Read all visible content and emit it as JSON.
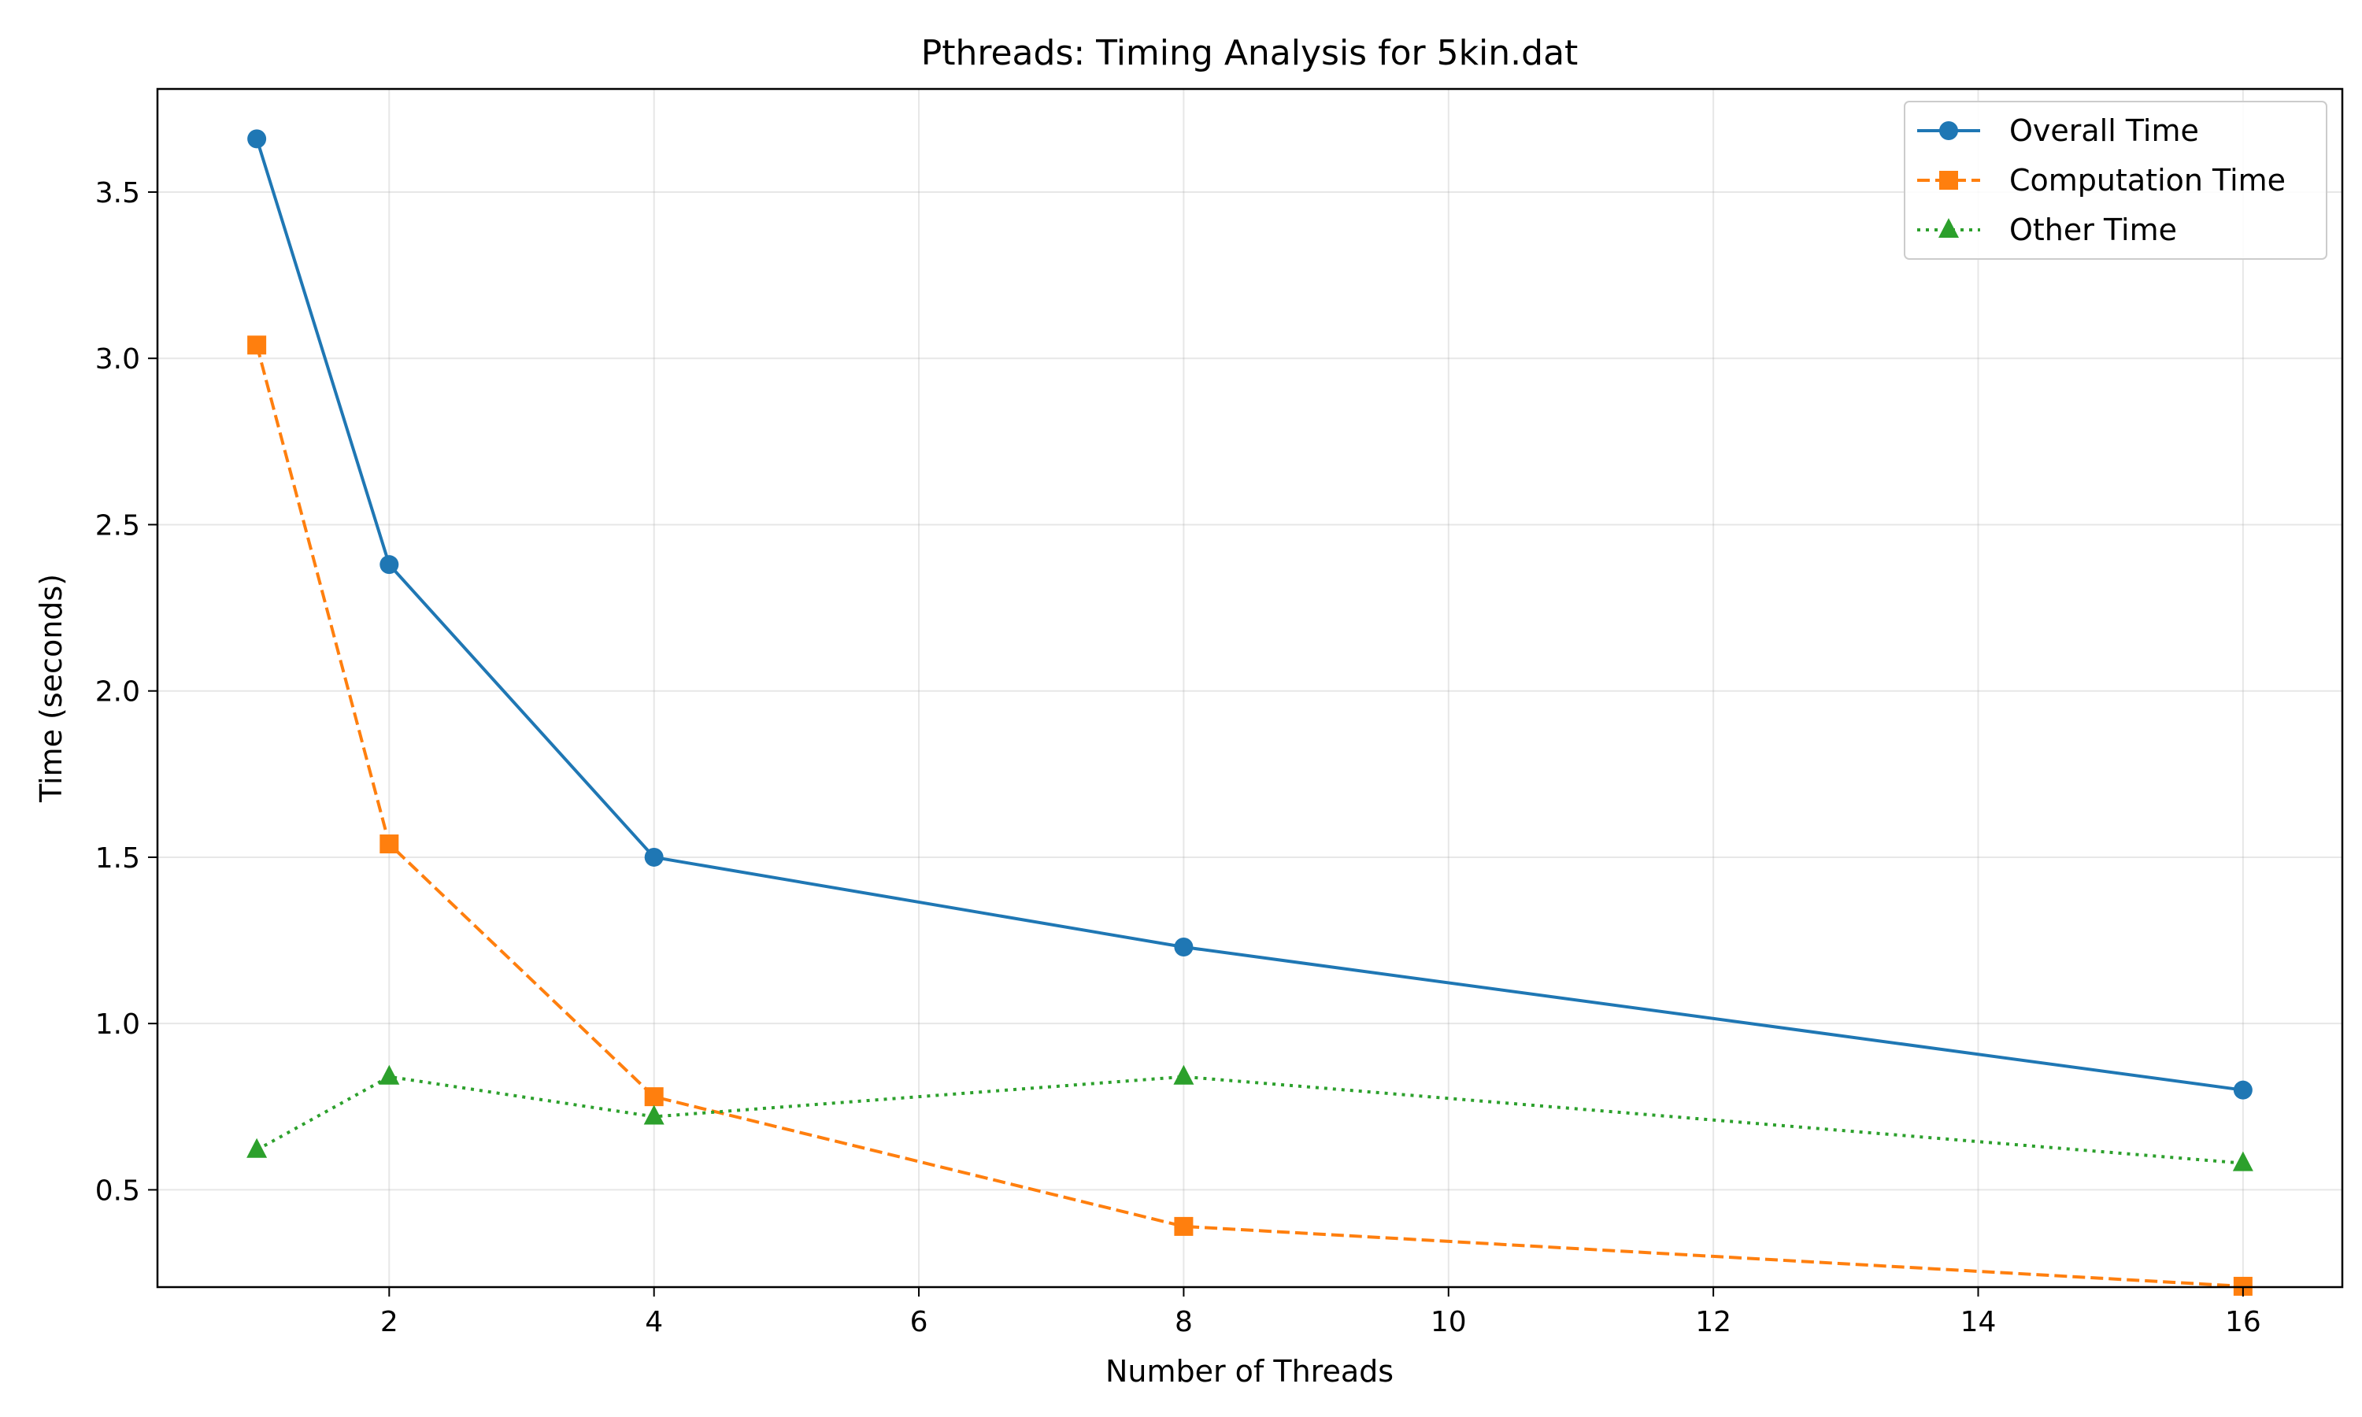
{
  "chart_data": {
    "type": "line",
    "title": "Pthreads: Timing Analysis for 5kin.dat",
    "xlabel": "Number of Threads",
    "ylabel": "Time (seconds)",
    "x": [
      1,
      2,
      4,
      8,
      16
    ],
    "xlim": [
      0.25,
      16.75
    ],
    "ylim": [
      0.2075,
      3.81
    ],
    "xticks": [
      2,
      4,
      6,
      8,
      10,
      12,
      14,
      16
    ],
    "xtick_labels": [
      "2",
      "4",
      "6",
      "8",
      "10",
      "12",
      "14",
      "16"
    ],
    "yticks": [
      0.5,
      1.0,
      1.5,
      2.0,
      2.5,
      3.0,
      3.5
    ],
    "ytick_labels": [
      "0.5",
      "1.0",
      "1.5",
      "2.0",
      "2.5",
      "3.0",
      "3.5"
    ],
    "grid": true,
    "legend_position": "top-right",
    "series": [
      {
        "name": "Overall Time",
        "values": [
          3.66,
          2.38,
          1.5,
          1.23,
          0.8
        ],
        "color": "#1f77b4",
        "marker": "circle",
        "linestyle": "solid"
      },
      {
        "name": "Computation Time",
        "values": [
          3.04,
          1.54,
          0.78,
          0.39,
          0.21
        ],
        "color": "#ff7f0e",
        "marker": "square",
        "linestyle": "dashed"
      },
      {
        "name": "Other Time",
        "values": [
          0.62,
          0.84,
          0.72,
          0.84,
          0.58
        ],
        "color": "#2ca02c",
        "marker": "triangle",
        "linestyle": "dotted"
      }
    ]
  }
}
